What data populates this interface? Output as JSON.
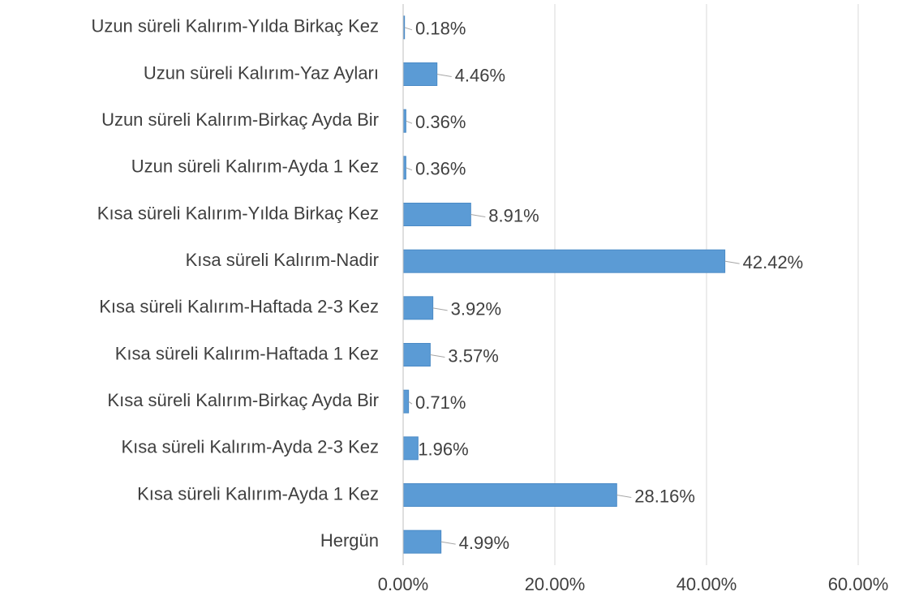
{
  "chart_data": {
    "type": "barh",
    "categories": [
      "Uzun süreli Kalırım-Yılda Birkaç Kez",
      "Uzun süreli Kalırım-Yaz Ayları",
      "Uzun süreli Kalırım-Birkaç Ayda Bir",
      "Uzun süreli Kalırım-Ayda 1 Kez",
      "Kısa süreli Kalırım-Yılda Birkaç Kez",
      "Kısa süreli Kalırım-Nadir",
      "Kısa süreli Kalırım-Haftada 2-3 Kez",
      "Kısa süreli Kalırım-Haftada 1 Kez",
      "Kısa süreli Kalırım-Birkaç Ayda Bir",
      "Kısa süreli Kalırım-Ayda 2-3 Kez",
      "Kısa süreli Kalırım-Ayda 1 Kez",
      "Hergün"
    ],
    "values": [
      0.18,
      4.46,
      0.36,
      0.36,
      8.91,
      42.42,
      3.92,
      3.57,
      0.71,
      1.96,
      28.16,
      4.99
    ],
    "value_labels": [
      "0.18%",
      "4.46%",
      "0.36%",
      "0.36%",
      "8.91%",
      "42.42%",
      "3.92%",
      "3.57%",
      "0.71%",
      "1.96%",
      "28.16%",
      "4.99%"
    ],
    "color": "#5b9bd5",
    "xlim": [
      0,
      60
    ],
    "xticks": [
      {
        "value": 0,
        "label": "0.00%"
      },
      {
        "value": 20,
        "label": "20.00%"
      },
      {
        "value": 40,
        "label": "40.00%"
      },
      {
        "value": 60,
        "label": "60.00%"
      }
    ],
    "grid": true
  }
}
